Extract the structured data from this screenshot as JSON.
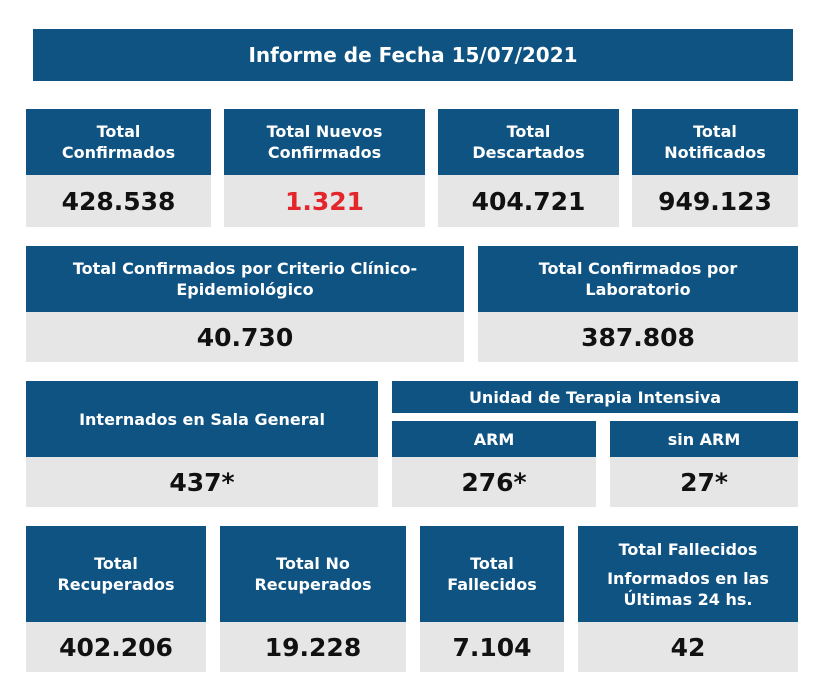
{
  "title": "Informe de Fecha 15/07/2021",
  "row1": [
    {
      "label_line1": "Total",
      "label_line2": "Confirmados",
      "value": "428.538"
    },
    {
      "label_line1": "Total Nuevos",
      "label_line2": "Confirmados",
      "value": "1.321"
    },
    {
      "label_line1": "Total",
      "label_line2": "Descartados",
      "value": "404.721"
    },
    {
      "label_line1": "Total",
      "label_line2": "Notificados",
      "value": "949.123"
    }
  ],
  "row2": [
    {
      "label_line1": "Total Confirmados por Criterio Clínico-",
      "label_line2": "Epidemiológico",
      "value": "40.730"
    },
    {
      "label_line1": "Total Confirmados por",
      "label_line2": "Laboratorio",
      "value": "387.808"
    }
  ],
  "row3": {
    "sala_general": {
      "label": "Internados en Sala General",
      "value": "437*"
    },
    "uti": {
      "label": "Unidad de Terapia Intensiva",
      "arm": {
        "label": "ARM",
        "value": "276*"
      },
      "sin_arm": {
        "label": "sin ARM",
        "value": "27*"
      }
    }
  },
  "row4": [
    {
      "label_line1": "Total",
      "label_line2": "Recuperados",
      "value": "402.206"
    },
    {
      "label_line1": "Total No",
      "label_line2": "Recuperados",
      "value": "19.228"
    },
    {
      "label_line1": "Total",
      "label_line2": "Fallecidos",
      "value": "7.104"
    },
    {
      "label_line1": "Total Fallecidos",
      "label_line2": "Informados en las",
      "label_line3": "Últimas 24 hs.",
      "value": "42"
    }
  ],
  "colors": {
    "header_bg": "#0f5382",
    "value_bg": "#e6e6e6",
    "highlight": "#e3262b"
  }
}
